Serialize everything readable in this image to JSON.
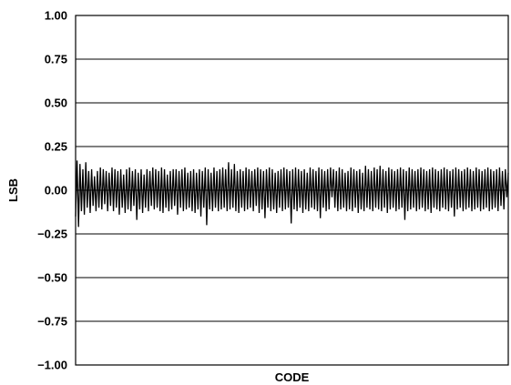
{
  "chart_data": {
    "type": "line",
    "title": "",
    "xlabel": "CODE",
    "ylabel": "LSB",
    "ylim": [
      -1.0,
      1.0
    ],
    "y_ticks": [
      1.0,
      0.75,
      0.5,
      0.25,
      0.0,
      -0.25,
      -0.5,
      -0.75,
      -1.0
    ],
    "y_tick_labels": [
      "1.00",
      "0.75",
      "0.50",
      "0.25",
      "0.00",
      "−0.25",
      "−0.50",
      "−0.75",
      "−1.00"
    ],
    "x_tick_labels": [],
    "grid": "horizontal",
    "legend": "none",
    "line_color": "#000000",
    "series": [
      {
        "values": [
          -0.15,
          0.17,
          -0.21,
          0.15,
          -0.12,
          0.12,
          -0.14,
          0.16,
          -0.1,
          0.11,
          -0.13,
          0.12,
          -0.09,
          0.08,
          -0.12,
          0.11,
          -0.1,
          0.13,
          -0.11,
          0.12,
          -0.08,
          0.11,
          -0.12,
          0.1,
          -0.09,
          0.13,
          -0.12,
          0.12,
          -0.1,
          0.11,
          -0.14,
          0.12,
          -0.1,
          0.09,
          -0.13,
          0.12,
          -0.11,
          0.13,
          -0.12,
          0.11,
          -0.09,
          0.12,
          -0.17,
          0.1,
          -0.11,
          0.12,
          -0.13,
          0.09,
          -0.1,
          0.12,
          -0.12,
          0.11,
          -0.09,
          0.13,
          -0.11,
          0.12,
          -0.1,
          0.11,
          -0.12,
          0.13,
          -0.13,
          0.12,
          -0.1,
          0.09,
          -0.12,
          0.11,
          -0.11,
          0.12,
          -0.09,
          0.12,
          -0.14,
          0.11,
          -0.1,
          0.12,
          -0.12,
          0.13,
          -0.11,
          0.1,
          -0.1,
          0.11,
          -0.12,
          0.12,
          -0.13,
          0.1,
          -0.11,
          0.12,
          -0.15,
          0.11,
          -0.1,
          0.13,
          -0.2,
          0.12,
          -0.11,
          0.1,
          -0.12,
          0.13,
          -0.1,
          0.11,
          -0.12,
          0.12,
          -0.11,
          0.13,
          -0.1,
          0.12,
          -0.12,
          0.16,
          -0.11,
          0.12,
          -0.1,
          0.15,
          -0.12,
          0.11,
          -0.13,
          0.12,
          -0.1,
          0.11,
          -0.12,
          0.13,
          -0.11,
          0.12,
          -0.1,
          0.11,
          -0.12,
          0.12,
          -0.09,
          0.13,
          -0.13,
          0.12,
          -0.11,
          0.11,
          -0.16,
          0.12,
          -0.1,
          0.13,
          -0.12,
          0.12,
          -0.11,
          0.1,
          -0.13,
          0.11,
          -0.1,
          0.12,
          -0.12,
          0.13,
          -0.11,
          0.12,
          -0.1,
          0.11,
          -0.19,
          0.12,
          -0.11,
          0.13,
          -0.12,
          0.12,
          -0.1,
          0.11,
          -0.13,
          0.12,
          -0.11,
          0.1,
          -0.12,
          0.13,
          -0.1,
          0.12,
          -0.11,
          0.11,
          -0.12,
          0.13,
          -0.16,
          0.12,
          -0.1,
          0.11,
          -0.12,
          0.12,
          -0.11,
          0.13,
          -0.04,
          0.12,
          -0.1,
          0.11,
          -0.12,
          0.13,
          -0.11,
          0.12,
          -0.1,
          0.1,
          -0.12,
          0.11,
          -0.11,
          0.13,
          -0.12,
          0.12,
          -0.1,
          0.11,
          -0.13,
          0.12,
          -0.11,
          0.1,
          -0.12,
          0.14,
          -0.1,
          0.12,
          -0.11,
          0.11,
          -0.12,
          0.13,
          -0.1,
          0.12,
          -0.11,
          0.14,
          -0.12,
          0.12,
          -0.1,
          0.11,
          -0.13,
          0.13,
          -0.11,
          0.12,
          -0.1,
          0.11,
          -0.12,
          0.12,
          -0.11,
          0.13,
          -0.1,
          0.12,
          -0.17,
          0.11,
          -0.12,
          0.13,
          -0.11,
          0.12,
          -0.1,
          0.11,
          -0.12,
          0.12,
          -0.11,
          0.13,
          -0.1,
          0.12,
          -0.12,
          0.11,
          -0.11,
          0.12,
          -0.13,
          0.13,
          -0.1,
          0.12,
          -0.11,
          0.11,
          -0.12,
          0.12,
          -0.1,
          0.13,
          -0.11,
          0.12,
          -0.12,
          0.11,
          -0.1,
          0.12,
          -0.15,
          0.13,
          -0.11,
          0.12,
          -0.1,
          0.11,
          -0.12,
          0.12,
          -0.11,
          0.13,
          -0.1,
          0.12,
          -0.12,
          0.11,
          -0.11,
          0.13,
          -0.1,
          0.12,
          -0.12,
          0.11,
          -0.11,
          0.12,
          -0.1,
          0.13,
          -0.12,
          0.12,
          -0.11,
          0.11,
          -0.1,
          0.12,
          -0.12,
          0.13,
          -0.09,
          0.11,
          -0.11,
          0.12,
          -0.04,
          0.1
        ]
      }
    ]
  }
}
